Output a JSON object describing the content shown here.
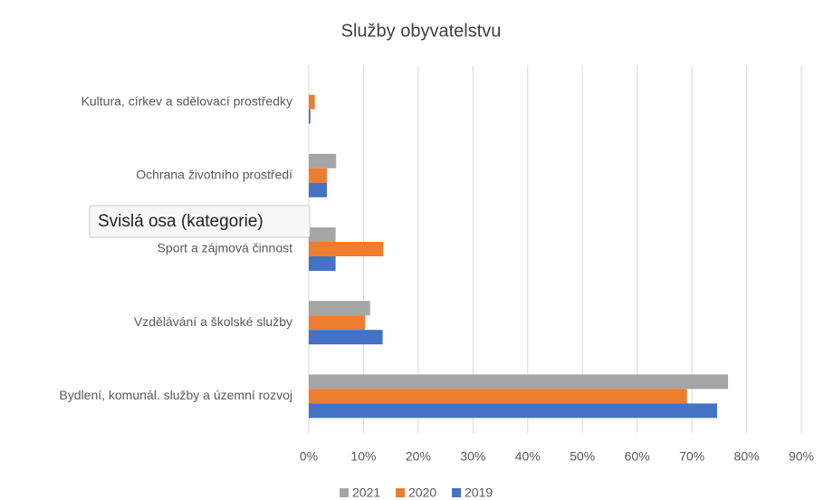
{
  "chart_data": {
    "type": "hbar",
    "title": "Služby obyvatelstvu",
    "categories": [
      "Bydlení, komunál. služby a územní rozvoj",
      "Vzdělávání a školské služby",
      "Sport a zájmová činnost",
      "Ochrana životního prostředí",
      "Kultura, církev a sdělovací prostředky"
    ],
    "series": [
      {
        "name": "2021",
        "color": "#a5a5a5",
        "values": [
          76.6,
          11.2,
          4.9,
          5.0,
          0
        ]
      },
      {
        "name": "2020",
        "color": "#ed7d31",
        "values": [
          69.1,
          10.3,
          13.6,
          3.3,
          1.1
        ]
      },
      {
        "name": "2019",
        "color": "#4472c4",
        "values": [
          74.6,
          13.5,
          4.9,
          3.3,
          0.3
        ]
      }
    ],
    "xlim": [
      0,
      90
    ],
    "xticks": [
      {
        "value": 0,
        "label": "0%"
      },
      {
        "value": 10,
        "label": "10%"
      },
      {
        "value": 20,
        "label": "20%"
      },
      {
        "value": 30,
        "label": "30%"
      },
      {
        "value": 40,
        "label": "40%"
      },
      {
        "value": 50,
        "label": "50%"
      },
      {
        "value": 60,
        "label": "60%"
      },
      {
        "value": 70,
        "label": "70%"
      },
      {
        "value": 80,
        "label": "80%"
      },
      {
        "value": 90,
        "label": "90%"
      }
    ],
    "grid": true,
    "legend": "bottom",
    "tooltip": "Svislá osa (kategorie)"
  }
}
